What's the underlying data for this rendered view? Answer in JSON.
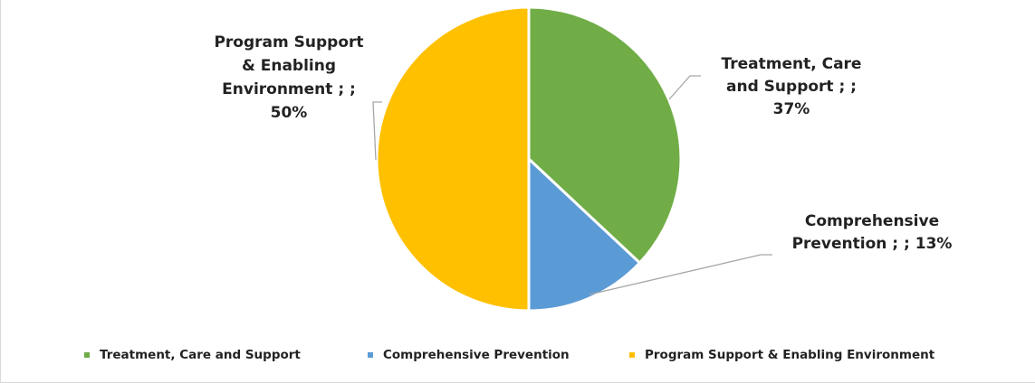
{
  "chart_data": {
    "type": "pie",
    "title": "",
    "legend_position": "bottom",
    "categories": [
      "Treatment, Care and Support",
      "Comprehensive Prevention",
      "Program Support & Enabling Environment"
    ],
    "values": [
      37,
      13,
      50
    ],
    "colors": [
      "#70AD47",
      "#5B9BD5",
      "#FFC000"
    ],
    "data_labels": [
      [
        "Treatment, Care",
        "and Support ; ;",
        "37%"
      ],
      [
        "Comprehensive",
        "Prevention ; ; 13%"
      ],
      [
        "Program Support",
        "& Enabling",
        "Environment ; ;",
        "50%"
      ]
    ]
  }
}
